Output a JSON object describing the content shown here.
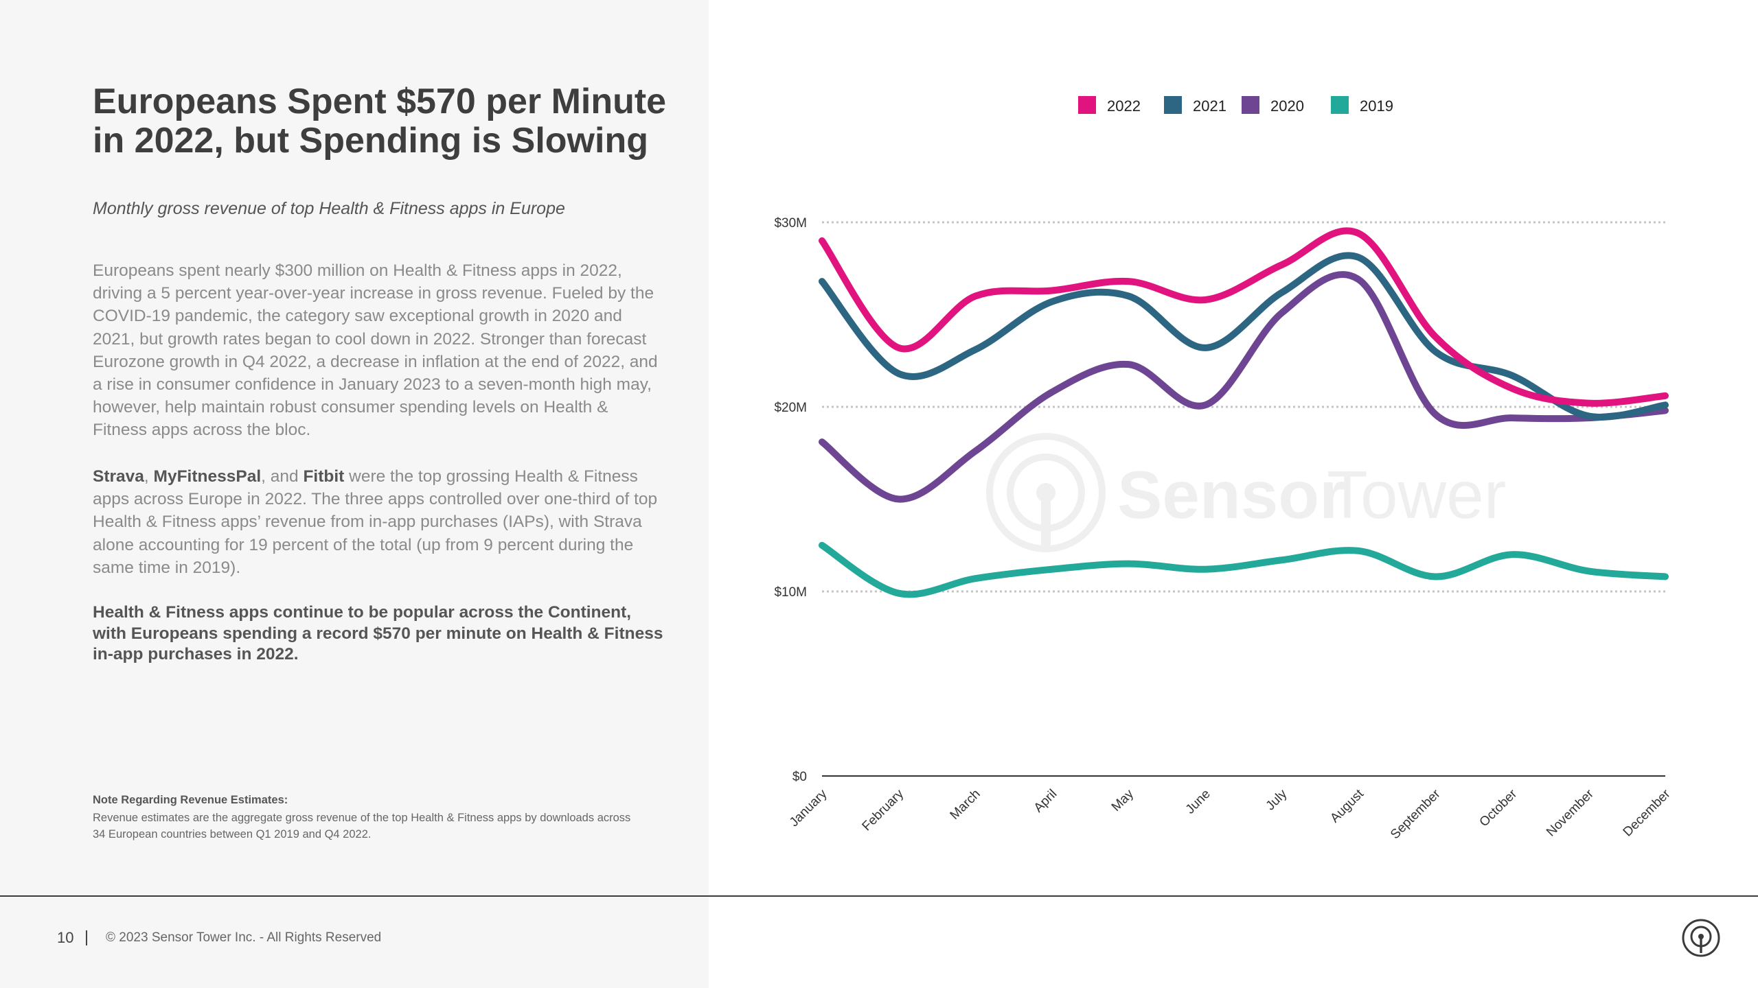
{
  "page": {
    "title": "Europeans Spent $570 per Minute in 2022, but Spending is Slowing",
    "subtitle": "Monthly gross revenue of top Health & Fitness apps in Europe",
    "paragraph1": "Europeans spent nearly $300 million on Health & Fitness apps in 2022, driving a 5 percent year-over-year increase in gross revenue. Fueled by the COVID-19 pandemic, the category saw exceptional growth in 2020 and 2021, but growth rates began to cool down in 2022. Stronger than forecast Eurozone growth in Q4 2022, a decrease in inflation at the end of 2022, and a rise in consumer confidence in January 2023 to a seven-month high may, however, help maintain robust consumer spending levels on Health & Fitness apps across the bloc.",
    "paragraph2": {
      "app1": "Strava",
      "sep1": ", ",
      "app2": "MyFitnessPal",
      "sep2": ", and ",
      "app3": "Fitbit",
      "rest": " were the top grossing Health & Fitness apps across Europe in 2022. The three apps controlled over one-third of top Health & Fitness apps’ revenue from in-app purchases (IAPs), with Strava alone accounting for 19 percent of the total (up from 9 percent during the same time in 2019)."
    },
    "paragraph3": "Health & Fitness apps continue to be popular across the Continent, with Europeans spending a record $570 per minute on Health & Fitness in-app purchases in 2022.",
    "note_title": "Note Regarding Revenue Estimates:",
    "note_text": "Revenue estimates are the aggregate gross revenue of the top Health & Fitness apps by downloads across 34 European countries between Q1 2019 and Q4 2022.",
    "watermark_logo": "SensorTower",
    "watermark_text_a": "Sensor",
    "watermark_text_b": "Tower"
  },
  "footer": {
    "page_number": "10",
    "copyright": "© 2023 Sensor Tower Inc. - All Rights Reserved",
    "logo_icon": "sensor-tower-logo-icon"
  },
  "chart_data": {
    "type": "line",
    "title": "Monthly gross revenue of top Health & Fitness apps in Europe",
    "xlabel": "",
    "ylabel": "",
    "ylim": [
      0,
      30
    ],
    "yunit": "$M",
    "yticks": [
      {
        "value": 0,
        "label": "$0"
      },
      {
        "value": 10,
        "label": "$10M"
      },
      {
        "value": 20,
        "label": "$20M"
      },
      {
        "value": 30,
        "label": "$30M"
      }
    ],
    "grid": true,
    "legend_position": "top",
    "categories": [
      "January",
      "February",
      "March",
      "April",
      "May",
      "June",
      "July",
      "August",
      "September",
      "October",
      "November",
      "December"
    ],
    "series": [
      {
        "name": "2022",
        "color": "#e0137f",
        "values": [
          29.0,
          23.2,
          26.0,
          26.3,
          26.8,
          25.8,
          27.7,
          29.4,
          23.8,
          21.0,
          20.2,
          20.6
        ]
      },
      {
        "name": "2021",
        "color": "#2d6682",
        "values": [
          26.8,
          21.8,
          23.1,
          25.7,
          26.0,
          23.2,
          26.2,
          28.1,
          23.0,
          21.7,
          19.5,
          20.1
        ]
      },
      {
        "name": "2020",
        "color": "#6d4592",
        "values": [
          18.1,
          15.0,
          17.6,
          20.8,
          22.3,
          20.1,
          25.1,
          26.9,
          19.6,
          19.4,
          19.4,
          19.8
        ]
      },
      {
        "name": "2019",
        "color": "#22a99a",
        "values": [
          12.5,
          9.9,
          10.7,
          11.2,
          11.5,
          11.2,
          11.7,
          12.2,
          10.8,
          12.0,
          11.1,
          10.8
        ]
      }
    ]
  }
}
